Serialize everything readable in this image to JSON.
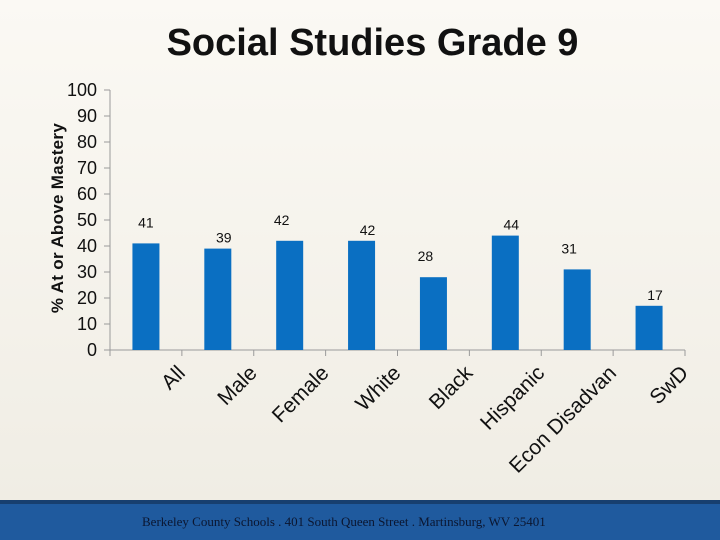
{
  "chart_data": {
    "type": "bar",
    "title": "Social Studies Grade 9",
    "ylabel": "% At or Above Mastery",
    "xlabel": "",
    "ylim": [
      0,
      100
    ],
    "yticks": [
      0,
      10,
      20,
      30,
      40,
      50,
      60,
      70,
      80,
      90,
      100
    ],
    "categories": [
      "All",
      "Male",
      "Female",
      "White",
      "Black",
      "Hispanic",
      "Econ Disadvan",
      "SwD"
    ],
    "values": [
      41,
      39,
      42,
      42,
      28,
      44,
      31,
      17
    ],
    "bar_color": "#0a6fc2",
    "grid": false,
    "legend": "none"
  },
  "footer": {
    "text": "Berkeley County Schools . 401 South Queen Street . Martinsburg, WV  25401",
    "color": "#1f5a9e"
  }
}
